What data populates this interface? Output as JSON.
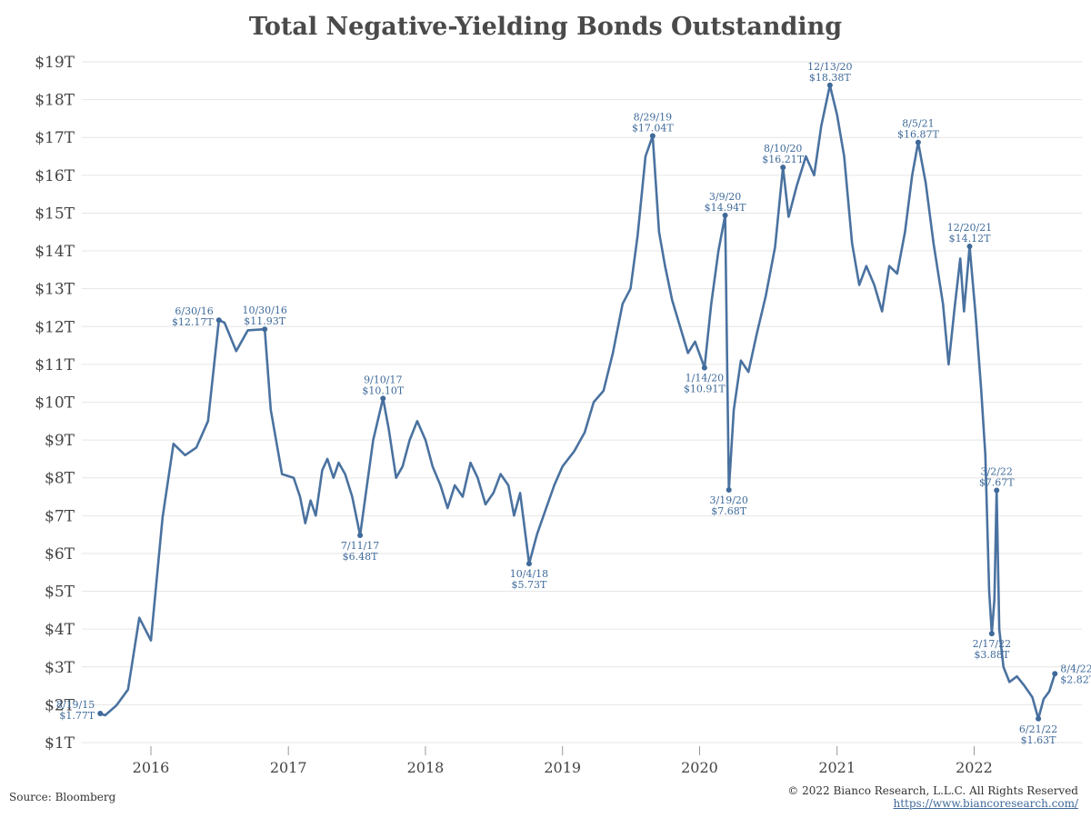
{
  "colors": {
    "line": "#4a72a0",
    "annotation": "#3f6a9a",
    "grid": "#e6e6e6"
  },
  "footer": {
    "source": "Source: Bloomberg",
    "copyright": "© 2022 Bianco Research, L.L.C. All Rights Reserved",
    "link": "https://www.biancoresearch.com/"
  },
  "chart_data": {
    "type": "line",
    "title": "Total Negative-Yielding Bonds Outstanding",
    "xlabel": "",
    "ylabel": "",
    "ylim": [
      1,
      19
    ],
    "xlim": [
      "2015-07-01",
      "2022-10-15"
    ],
    "grid": true,
    "y_ticks": [
      {
        "value": 1,
        "label": "$1T"
      },
      {
        "value": 2,
        "label": "$2T"
      },
      {
        "value": 3,
        "label": "$3T"
      },
      {
        "value": 4,
        "label": "$4T"
      },
      {
        "value": 5,
        "label": "$5T"
      },
      {
        "value": 6,
        "label": "$6T"
      },
      {
        "value": 7,
        "label": "$7T"
      },
      {
        "value": 8,
        "label": "$8T"
      },
      {
        "value": 9,
        "label": "$9T"
      },
      {
        "value": 10,
        "label": "$10T"
      },
      {
        "value": 11,
        "label": "$11T"
      },
      {
        "value": 12,
        "label": "$12T"
      },
      {
        "value": 13,
        "label": "$13T"
      },
      {
        "value": 14,
        "label": "$14T"
      },
      {
        "value": 15,
        "label": "$15T"
      },
      {
        "value": 16,
        "label": "$16T"
      },
      {
        "value": 17,
        "label": "$17T"
      },
      {
        "value": 18,
        "label": "$18T"
      },
      {
        "value": 19,
        "label": "$19T"
      }
    ],
    "x_ticks": [
      {
        "date": "2016-01-01",
        "label": "2016"
      },
      {
        "date": "2017-01-01",
        "label": "2017"
      },
      {
        "date": "2018-01-01",
        "label": "2018"
      },
      {
        "date": "2019-01-01",
        "label": "2019"
      },
      {
        "date": "2020-01-01",
        "label": "2020"
      },
      {
        "date": "2021-01-01",
        "label": "2021"
      },
      {
        "date": "2022-01-01",
        "label": "2022"
      }
    ],
    "series": [
      {
        "points": [
          [
            "2015-08-19",
            1.77
          ],
          [
            "2015-09-01",
            1.72
          ],
          [
            "2015-10-01",
            1.98
          ],
          [
            "2015-11-01",
            2.4
          ],
          [
            "2015-12-01",
            4.3
          ],
          [
            "2016-01-01",
            3.7
          ],
          [
            "2016-02-01",
            6.95
          ],
          [
            "2016-03-01",
            8.9
          ],
          [
            "2016-04-01",
            8.6
          ],
          [
            "2016-05-01",
            8.8
          ],
          [
            "2016-06-01",
            9.5
          ],
          [
            "2016-06-30",
            12.17
          ],
          [
            "2016-07-15",
            12.1
          ],
          [
            "2016-08-15",
            11.35
          ],
          [
            "2016-09-15",
            11.9
          ],
          [
            "2016-10-30",
            11.93
          ],
          [
            "2016-11-15",
            9.8
          ],
          [
            "2016-12-15",
            8.1
          ],
          [
            "2017-01-15",
            8.0
          ],
          [
            "2017-02-01",
            7.5
          ],
          [
            "2017-02-15",
            6.8
          ],
          [
            "2017-03-01",
            7.4
          ],
          [
            "2017-03-15",
            7.0
          ],
          [
            "2017-04-01",
            8.2
          ],
          [
            "2017-04-15",
            8.5
          ],
          [
            "2017-05-01",
            8.0
          ],
          [
            "2017-05-15",
            8.4
          ],
          [
            "2017-06-01",
            8.1
          ],
          [
            "2017-06-20",
            7.5
          ],
          [
            "2017-07-11",
            6.48
          ],
          [
            "2017-07-25",
            7.5
          ],
          [
            "2017-08-15",
            9.0
          ],
          [
            "2017-09-10",
            10.1
          ],
          [
            "2017-09-25",
            9.3
          ],
          [
            "2017-10-15",
            8.0
          ],
          [
            "2017-11-01",
            8.3
          ],
          [
            "2017-11-20",
            9.0
          ],
          [
            "2017-12-10",
            9.5
          ],
          [
            "2018-01-01",
            9.0
          ],
          [
            "2018-01-20",
            8.3
          ],
          [
            "2018-02-10",
            7.8
          ],
          [
            "2018-03-01",
            7.2
          ],
          [
            "2018-03-20",
            7.8
          ],
          [
            "2018-04-10",
            7.5
          ],
          [
            "2018-05-01",
            8.4
          ],
          [
            "2018-05-20",
            8.0
          ],
          [
            "2018-06-10",
            7.3
          ],
          [
            "2018-07-01",
            7.6
          ],
          [
            "2018-07-20",
            8.1
          ],
          [
            "2018-08-10",
            7.8
          ],
          [
            "2018-08-25",
            7.0
          ],
          [
            "2018-09-10",
            7.6
          ],
          [
            "2018-10-04",
            5.73
          ],
          [
            "2018-10-25",
            6.5
          ],
          [
            "2018-11-15",
            7.1
          ],
          [
            "2018-12-10",
            7.8
          ],
          [
            "2019-01-01",
            8.3
          ],
          [
            "2019-02-01",
            8.7
          ],
          [
            "2019-03-01",
            9.2
          ],
          [
            "2019-03-25",
            10.0
          ],
          [
            "2019-04-20",
            10.3
          ],
          [
            "2019-05-15",
            11.3
          ],
          [
            "2019-06-10",
            12.6
          ],
          [
            "2019-07-01",
            13.0
          ],
          [
            "2019-07-20",
            14.4
          ],
          [
            "2019-08-10",
            16.5
          ],
          [
            "2019-08-29",
            17.04
          ],
          [
            "2019-09-15",
            14.5
          ],
          [
            "2019-10-01",
            13.6
          ],
          [
            "2019-10-20",
            12.7
          ],
          [
            "2019-11-10",
            12.0
          ],
          [
            "2019-12-01",
            11.3
          ],
          [
            "2019-12-20",
            11.6
          ],
          [
            "2020-01-14",
            10.91
          ],
          [
            "2020-02-01",
            12.6
          ],
          [
            "2020-02-20",
            14.0
          ],
          [
            "2020-03-09",
            14.94
          ],
          [
            "2020-03-19",
            7.68
          ],
          [
            "2020-04-01",
            9.8
          ],
          [
            "2020-04-20",
            11.1
          ],
          [
            "2020-05-10",
            10.8
          ],
          [
            "2020-06-01",
            11.8
          ],
          [
            "2020-06-25",
            12.8
          ],
          [
            "2020-07-20",
            14.1
          ],
          [
            "2020-08-10",
            16.21
          ],
          [
            "2020-08-25",
            14.9
          ],
          [
            "2020-09-15",
            15.7
          ],
          [
            "2020-10-10",
            16.5
          ],
          [
            "2020-11-01",
            16.0
          ],
          [
            "2020-11-20",
            17.3
          ],
          [
            "2020-12-13",
            18.38
          ],
          [
            "2021-01-01",
            17.6
          ],
          [
            "2021-01-20",
            16.5
          ],
          [
            "2021-02-10",
            14.2
          ],
          [
            "2021-03-01",
            13.1
          ],
          [
            "2021-03-20",
            13.6
          ],
          [
            "2021-04-10",
            13.1
          ],
          [
            "2021-05-01",
            12.4
          ],
          [
            "2021-05-20",
            13.6
          ],
          [
            "2021-06-10",
            13.4
          ],
          [
            "2021-07-01",
            14.5
          ],
          [
            "2021-07-20",
            16.0
          ],
          [
            "2021-08-05",
            16.87
          ],
          [
            "2021-08-25",
            15.8
          ],
          [
            "2021-09-15",
            14.2
          ],
          [
            "2021-10-10",
            12.6
          ],
          [
            "2021-10-25",
            11.0
          ],
          [
            "2021-11-10",
            12.5
          ],
          [
            "2021-11-25",
            13.8
          ],
          [
            "2021-12-05",
            12.4
          ],
          [
            "2021-12-20",
            14.12
          ],
          [
            "2022-01-05",
            12.3
          ],
          [
            "2022-01-20",
            10.3
          ],
          [
            "2022-01-31",
            8.6
          ],
          [
            "2022-02-10",
            5.0
          ],
          [
            "2022-02-17",
            3.88
          ],
          [
            "2022-02-24",
            4.8
          ],
          [
            "2022-03-02",
            7.67
          ],
          [
            "2022-03-09",
            4.0
          ],
          [
            "2022-03-20",
            3.0
          ],
          [
            "2022-04-05",
            2.6
          ],
          [
            "2022-04-25",
            2.75
          ],
          [
            "2022-05-15",
            2.5
          ],
          [
            "2022-06-05",
            2.2
          ],
          [
            "2022-06-21",
            1.63
          ],
          [
            "2022-07-05",
            2.15
          ],
          [
            "2022-07-20",
            2.35
          ],
          [
            "2022-08-04",
            2.82
          ]
        ]
      }
    ],
    "annotations": [
      {
        "date": "2015-08-19",
        "value": 1.77,
        "line1": "8/19/15",
        "line2": "$1.77T",
        "pos": "left"
      },
      {
        "date": "2016-06-30",
        "value": 12.17,
        "line1": "6/30/16",
        "line2": "$12.17T",
        "pos": "left"
      },
      {
        "date": "2016-10-30",
        "value": 11.93,
        "line1": "10/30/16",
        "line2": "$11.93T",
        "pos": "above"
      },
      {
        "date": "2017-07-11",
        "value": 6.48,
        "line1": "7/11/17",
        "line2": "$6.48T",
        "pos": "below"
      },
      {
        "date": "2017-09-10",
        "value": 10.1,
        "line1": "9/10/17",
        "line2": "$10.10T",
        "pos": "above"
      },
      {
        "date": "2018-10-04",
        "value": 5.73,
        "line1": "10/4/18",
        "line2": "$5.73T",
        "pos": "below"
      },
      {
        "date": "2019-08-29",
        "value": 17.04,
        "line1": "8/29/19",
        "line2": "$17.04T",
        "pos": "above"
      },
      {
        "date": "2020-01-14",
        "value": 10.91,
        "line1": "1/14/20",
        "line2": "$10.91T",
        "pos": "below"
      },
      {
        "date": "2020-03-09",
        "value": 14.94,
        "line1": "3/9/20",
        "line2": "$14.94T",
        "pos": "above"
      },
      {
        "date": "2020-03-19",
        "value": 7.68,
        "line1": "3/19/20",
        "line2": "$7.68T",
        "pos": "below"
      },
      {
        "date": "2020-08-10",
        "value": 16.21,
        "line1": "8/10/20",
        "line2": "$16.21T",
        "pos": "above"
      },
      {
        "date": "2020-12-13",
        "value": 18.38,
        "line1": "12/13/20",
        "line2": "$18.38T",
        "pos": "above"
      },
      {
        "date": "2021-08-05",
        "value": 16.87,
        "line1": "8/5/21",
        "line2": "$16.87T",
        "pos": "above"
      },
      {
        "date": "2021-12-20",
        "value": 14.12,
        "line1": "12/20/21",
        "line2": "$14.12T",
        "pos": "above"
      },
      {
        "date": "2022-02-17",
        "value": 3.88,
        "line1": "2/17/22",
        "line2": "$3.88T",
        "pos": "below"
      },
      {
        "date": "2022-03-02",
        "value": 7.67,
        "line1": "3/2/22",
        "line2": "$7.67T",
        "pos": "above"
      },
      {
        "date": "2022-06-21",
        "value": 1.63,
        "line1": "6/21/22",
        "line2": "$1.63T",
        "pos": "below"
      },
      {
        "date": "2022-08-04",
        "value": 2.82,
        "line1": "8/4/22",
        "line2": "$2.82T",
        "pos": "right"
      }
    ]
  }
}
